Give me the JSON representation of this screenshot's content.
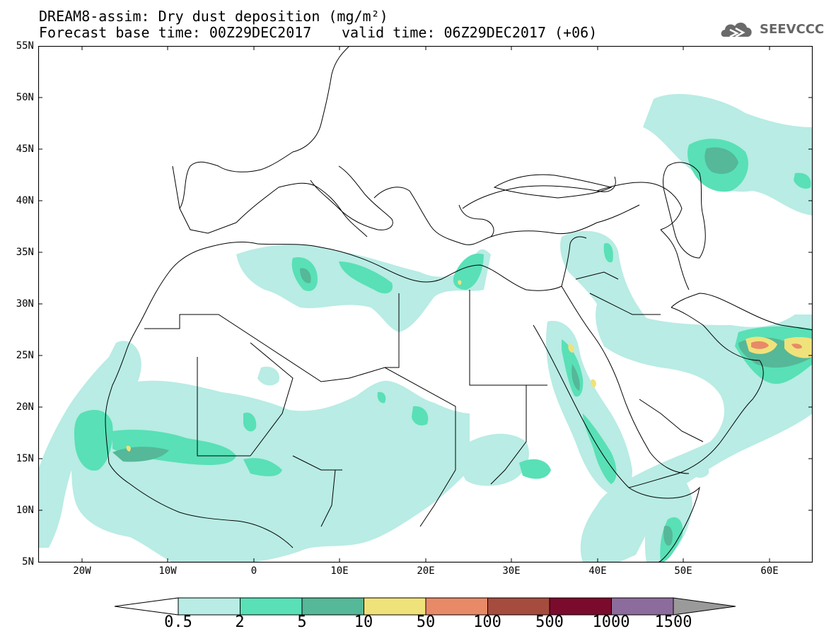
{
  "title_line1": "DREAM8-assim: Dry dust deposition (mg/m²)",
  "title_line2_left": "Forecast base time: 00Z29DEC2017",
  "title_line2_right": "valid time: 06Z29DEC2017 (+06)",
  "logo": {
    "text": "SEEVCCC",
    "icon": "cloud-icon"
  },
  "lat_labels": [
    "55N",
    "50N",
    "45N",
    "40N",
    "35N",
    "30N",
    "25N",
    "20N",
    "15N",
    "10N",
    "5N"
  ],
  "lon_labels": [
    "20W",
    "10W",
    "0",
    "10E",
    "20E",
    "30E",
    "40E",
    "50E",
    "60E"
  ],
  "colorbar": {
    "labels": [
      "0.5",
      "2",
      "5",
      "10",
      "50",
      "100",
      "500",
      "1000",
      "1500"
    ],
    "colors": [
      "#b8ece4",
      "#59e0b6",
      "#55b898",
      "#f0e27a",
      "#e88a68",
      "#a64c3e",
      "#7a0b2c",
      "#8c6c9c"
    ],
    "under_color": "#ffffff",
    "over_color": "#9a9a9a"
  },
  "colors": {
    "land": "#ffffff",
    "border": "#000000"
  }
}
